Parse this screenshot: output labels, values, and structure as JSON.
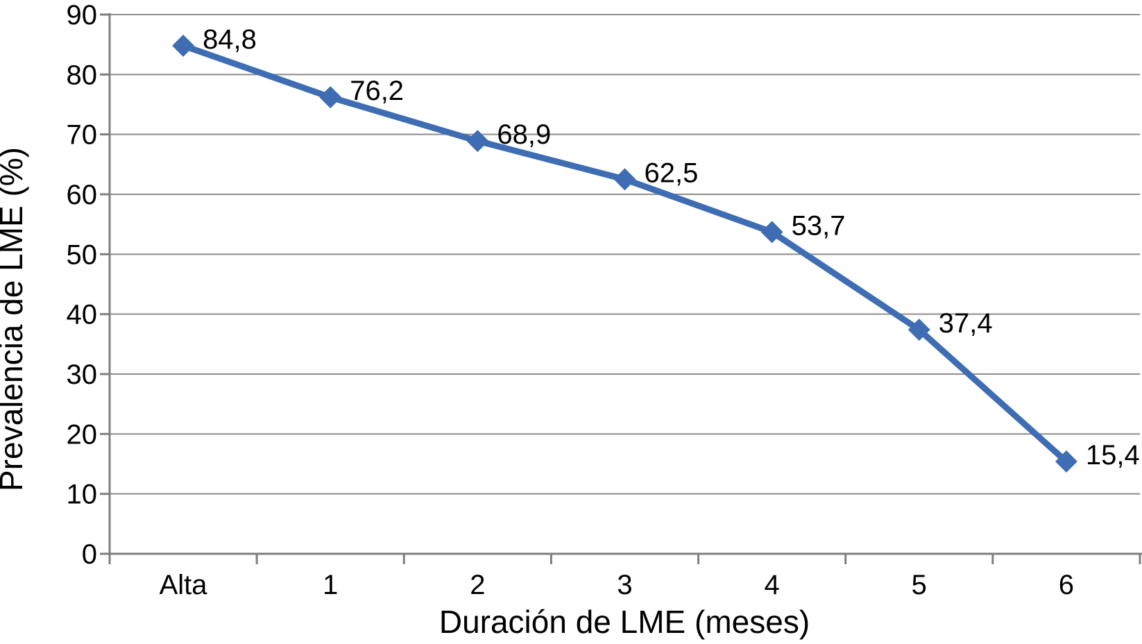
{
  "chart_data": {
    "type": "line",
    "categories": [
      "Alta",
      "1",
      "2",
      "3",
      "4",
      "5",
      "6"
    ],
    "series": [
      {
        "name": "Prevalencia de LME",
        "values": [
          84.8,
          76.2,
          68.9,
          62.5,
          53.7,
          37.4,
          15.4
        ]
      }
    ],
    "data_labels": [
      "84,8",
      "76,2",
      "68,9",
      "62,5",
      "53,7",
      "37,4",
      "15,4"
    ],
    "title": "",
    "xlabel": "Duración de LME (meses)",
    "ylabel": "Prevalencia de LME (%)",
    "ylim": [
      0,
      90
    ],
    "ytick_interval": 10,
    "ytick_labels": [
      "0",
      "10",
      "20",
      "30",
      "40",
      "50",
      "60",
      "70",
      "80",
      "90"
    ],
    "grid": "horizontal",
    "legend_position": "none",
    "marker_shape": "diamond",
    "colors": {
      "line": "#3E6DB3",
      "marker": "#3E6DB3",
      "gridline": "#8C8C8C",
      "axis": "#7F7F7F",
      "text": "#000000",
      "background": "#FFFFFF"
    }
  }
}
